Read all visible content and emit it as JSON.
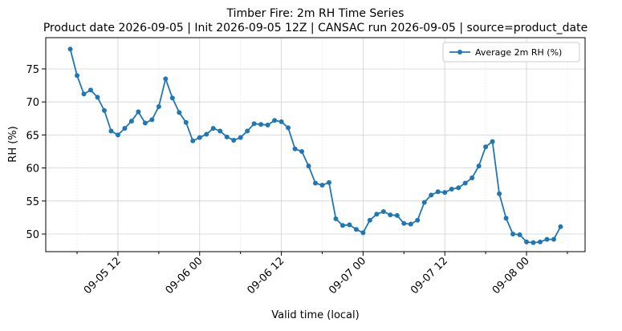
{
  "chart_data": {
    "type": "line",
    "title": "Timber Fire: 2m RH Time Series",
    "subtitle": "Product date 2026-09-05 | Init 2026-09-05 12Z | CANSAC run 2026-09-05 | source=product_date",
    "x_label": "Valid time (local)",
    "y_label": "RH (%)",
    "x": [
      "09-05 05",
      "09-05 06",
      "09-05 07",
      "09-05 08",
      "09-05 09",
      "09-05 10",
      "09-05 11",
      "09-05 12",
      "09-05 13",
      "09-05 14",
      "09-05 15",
      "09-05 16",
      "09-05 17",
      "09-05 18",
      "09-05 19",
      "09-05 20",
      "09-05 21",
      "09-05 22",
      "09-05 23",
      "09-06 00",
      "09-06 01",
      "09-06 02",
      "09-06 03",
      "09-06 04",
      "09-06 05",
      "09-06 06",
      "09-06 07",
      "09-06 08",
      "09-06 09",
      "09-06 10",
      "09-06 11",
      "09-06 12",
      "09-06 13",
      "09-06 14",
      "09-06 15",
      "09-06 16",
      "09-06 17",
      "09-06 18",
      "09-06 19",
      "09-06 20",
      "09-06 21",
      "09-06 22",
      "09-06 23",
      "09-07 00",
      "09-07 01",
      "09-07 02",
      "09-07 03",
      "09-07 04",
      "09-07 05",
      "09-07 06",
      "09-07 07",
      "09-07 08",
      "09-07 09",
      "09-07 10",
      "09-07 11",
      "09-07 12",
      "09-07 13",
      "09-07 14",
      "09-07 15",
      "09-07 16",
      "09-07 17",
      "09-07 18",
      "09-07 19",
      "09-07 20",
      "09-07 21",
      "09-07 22",
      "09-07 23",
      "09-08 00",
      "09-08 01",
      "09-08 02",
      "09-08 03",
      "09-08 04",
      "09-08 05"
    ],
    "series": [
      {
        "name": "Average 2m RH (%)",
        "color": "#1f77b4",
        "values": [
          78,
          74,
          71.2,
          71.8,
          70.7,
          68.7,
          65.6,
          65,
          66,
          67.1,
          68.5,
          66.8,
          67.3,
          69.3,
          73.5,
          70.6,
          68.4,
          66.9,
          64.1,
          64.6,
          65.1,
          66,
          65.6,
          64.7,
          64.2,
          64.6,
          65.6,
          66.7,
          66.6,
          66.5,
          67.2,
          67,
          66.1,
          62.9,
          62.5,
          60.3,
          57.7,
          57.4,
          57.8,
          52.3,
          51.3,
          51.4,
          50.7,
          50.2,
          52.1,
          53,
          53.4,
          52.9,
          52.8,
          51.6,
          51.5,
          52.1,
          54.8,
          55.9,
          56.4,
          56.3,
          56.8,
          57,
          57.7,
          58.5,
          60.3,
          63.2,
          64,
          56.1,
          52.4,
          50,
          49.9,
          48.8,
          48.7,
          48.8,
          49.2,
          49.2,
          51.1
        ]
      }
    ],
    "xlim": [
      "09-05 01:24",
      "09-08 08:36"
    ],
    "xticks": [
      "09-05 12",
      "09-06 00",
      "09-06 12",
      "09-07 00",
      "09-07 12",
      "09-08 00"
    ],
    "xminor_ticks": [
      "09-05 06",
      "09-05 18",
      "09-06 06",
      "09-06 18",
      "09-07 06",
      "09-07 18",
      "09-08 06"
    ],
    "ylim": [
      47.33,
      79.73
    ],
    "yticks": [
      50,
      55,
      60,
      65,
      70,
      75
    ],
    "grid": true,
    "legend": "upper right"
  }
}
